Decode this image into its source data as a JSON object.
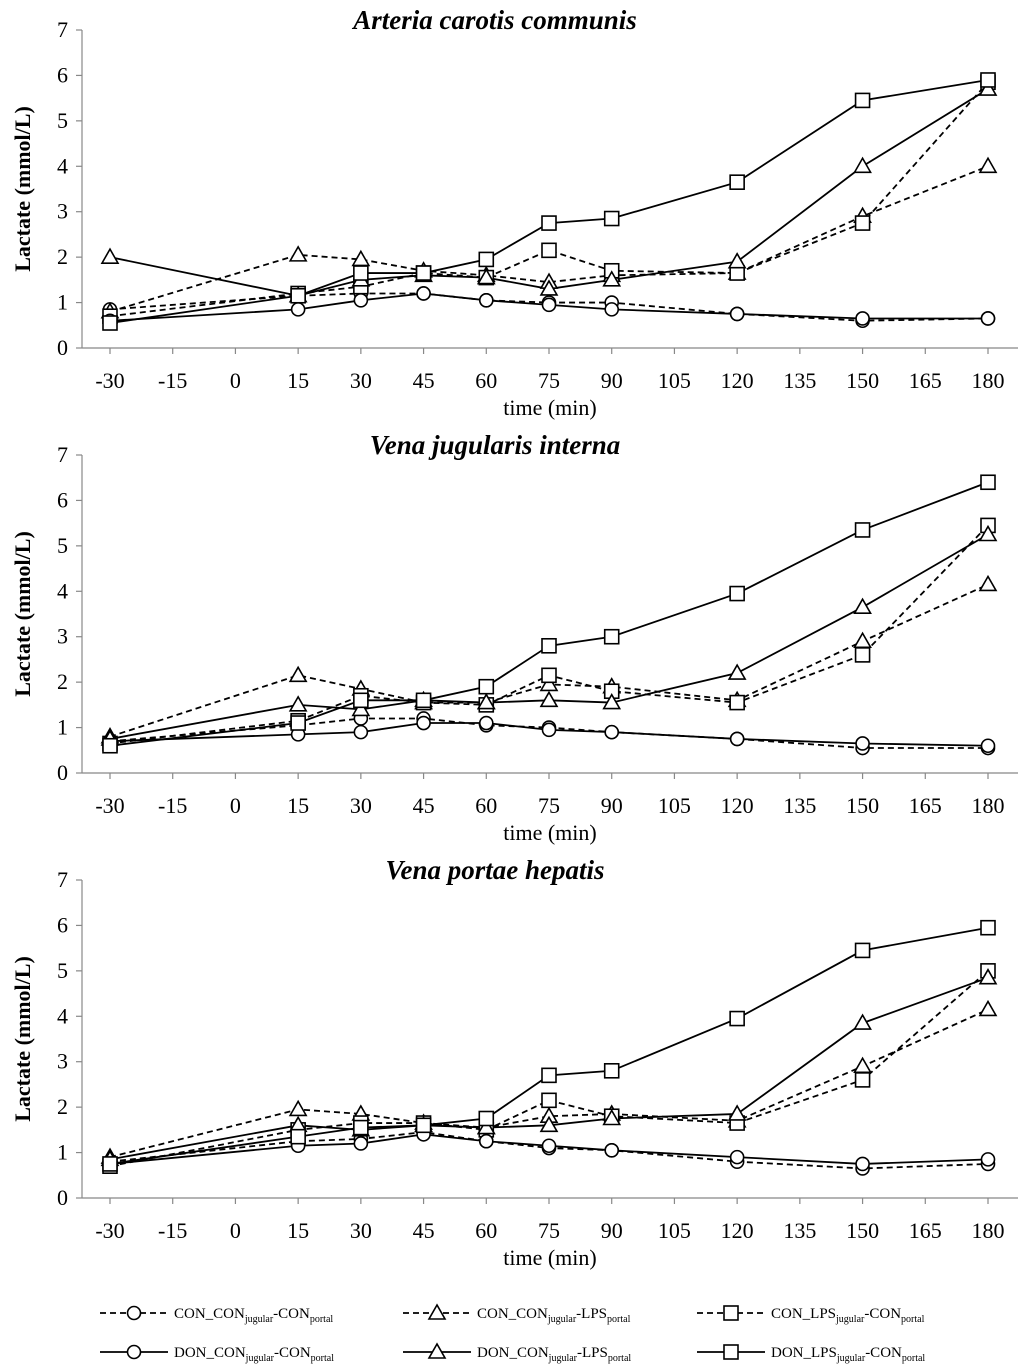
{
  "chart_data": [
    {
      "type": "line",
      "title": "Arteria carotis communis",
      "xlabel": "time (min)",
      "ylabel": "Lactate (mmol/L)",
      "xlim": [
        -30,
        180
      ],
      "ylim": [
        0,
        7
      ],
      "xticks": [
        -30,
        -15,
        0,
        15,
        30,
        45,
        60,
        75,
        90,
        105,
        120,
        135,
        150,
        165,
        180
      ],
      "yticks": [
        0,
        1,
        2,
        3,
        4,
        5,
        6,
        7
      ],
      "x": [
        -30,
        15,
        30,
        45,
        60,
        75,
        90,
        120,
        150,
        180
      ],
      "series": [
        {
          "name": "CON_CON-CON",
          "values": [
            0.85,
            1.15,
            1.2,
            1.2,
            1.05,
            1.0,
            1.0,
            0.75,
            0.6,
            0.65
          ]
        },
        {
          "name": "CON_CON-LPS",
          "values": [
            0.8,
            2.05,
            1.95,
            1.7,
            1.6,
            1.45,
            1.6,
            1.65,
            2.9,
            4.0
          ]
        },
        {
          "name": "CON_LPS-CON",
          "values": [
            0.7,
            1.2,
            1.35,
            1.65,
            1.55,
            2.15,
            1.7,
            1.65,
            2.75,
            5.85
          ]
        },
        {
          "name": "DON_CON-CON",
          "values": [
            0.6,
            0.85,
            1.05,
            1.2,
            1.05,
            0.95,
            0.85,
            0.75,
            0.65,
            0.65
          ]
        },
        {
          "name": "DON_CON-LPS",
          "values": [
            2.0,
            1.15,
            1.5,
            1.6,
            1.55,
            1.3,
            1.5,
            1.9,
            4.0,
            5.7
          ]
        },
        {
          "name": "DON_LPS-CON",
          "values": [
            0.55,
            1.15,
            1.65,
            1.65,
            1.95,
            2.75,
            2.85,
            3.65,
            5.45,
            5.9
          ]
        }
      ]
    },
    {
      "type": "line",
      "title": "Vena jugularis interna",
      "xlabel": "time (min)",
      "ylabel": "Lactate (mmol/L)",
      "xlim": [
        -30,
        180
      ],
      "ylim": [
        0,
        7
      ],
      "xticks": [
        -30,
        -15,
        0,
        15,
        30,
        45,
        60,
        75,
        90,
        105,
        120,
        135,
        150,
        165,
        180
      ],
      "yticks": [
        0,
        1,
        2,
        3,
        4,
        5,
        6,
        7
      ],
      "x": [
        -30,
        15,
        30,
        45,
        60,
        75,
        90,
        120,
        150,
        180
      ],
      "series": [
        {
          "name": "CON_CON-CON",
          "values": [
            0.7,
            1.05,
            1.2,
            1.2,
            1.05,
            1.0,
            0.9,
            0.75,
            0.55,
            0.55
          ]
        },
        {
          "name": "CON_CON-LPS",
          "values": [
            0.8,
            2.15,
            1.85,
            1.55,
            1.55,
            1.95,
            1.9,
            1.6,
            2.9,
            4.15
          ]
        },
        {
          "name": "CON_LPS-CON",
          "values": [
            0.65,
            1.15,
            1.7,
            1.55,
            1.5,
            2.15,
            1.8,
            1.55,
            2.6,
            5.45
          ]
        },
        {
          "name": "DON_CON-CON",
          "values": [
            0.7,
            0.85,
            0.9,
            1.1,
            1.1,
            0.95,
            0.9,
            0.75,
            0.65,
            0.6
          ]
        },
        {
          "name": "DON_CON-LPS",
          "values": [
            0.75,
            1.5,
            1.4,
            1.6,
            1.55,
            1.6,
            1.55,
            2.2,
            3.65,
            5.25
          ]
        },
        {
          "name": "DON_LPS-CON",
          "values": [
            0.6,
            1.1,
            1.6,
            1.6,
            1.9,
            2.8,
            3.0,
            3.95,
            5.35,
            6.4
          ]
        }
      ]
    },
    {
      "type": "line",
      "title": "Vena portae hepatis",
      "xlabel": "time (min)",
      "ylabel": "Lactate (mmol/L)",
      "xlim": [
        -30,
        180
      ],
      "ylim": [
        0,
        7
      ],
      "xticks": [
        -30,
        -15,
        0,
        15,
        30,
        45,
        60,
        75,
        90,
        105,
        120,
        135,
        150,
        165,
        180
      ],
      "yticks": [
        0,
        1,
        2,
        3,
        4,
        5,
        6,
        7
      ],
      "x": [
        -30,
        15,
        30,
        45,
        60,
        75,
        90,
        120,
        150,
        180
      ],
      "series": [
        {
          "name": "CON_CON-CON",
          "values": [
            0.8,
            1.25,
            1.3,
            1.45,
            1.25,
            1.1,
            1.05,
            0.8,
            0.65,
            0.75
          ]
        },
        {
          "name": "CON_CON-LPS",
          "values": [
            0.9,
            1.95,
            1.85,
            1.65,
            1.55,
            1.8,
            1.85,
            1.7,
            2.9,
            4.15
          ]
        },
        {
          "name": "CON_LPS-CON",
          "values": [
            0.7,
            1.5,
            1.65,
            1.65,
            1.5,
            2.15,
            1.8,
            1.65,
            2.6,
            5.0
          ]
        },
        {
          "name": "DON_CON-CON",
          "values": [
            0.75,
            1.15,
            1.2,
            1.4,
            1.25,
            1.15,
            1.05,
            0.9,
            0.75,
            0.85
          ]
        },
        {
          "name": "DON_CON-LPS",
          "values": [
            0.85,
            1.6,
            1.5,
            1.6,
            1.55,
            1.6,
            1.75,
            1.85,
            3.85,
            4.85
          ]
        },
        {
          "name": "DON_LPS-CON",
          "values": [
            0.75,
            1.35,
            1.55,
            1.6,
            1.75,
            2.7,
            2.8,
            3.95,
            5.45,
            5.95
          ]
        }
      ]
    }
  ],
  "legend": [
    {
      "style": "dashed",
      "marker": "circle",
      "prefix": "CON_CON",
      "sub1": "jugular",
      "mid": "-CON",
      "sub2": "portal"
    },
    {
      "style": "dashed",
      "marker": "triangle",
      "prefix": "CON_CON",
      "sub1": "jugular",
      "mid": "-LPS",
      "sub2": "portal"
    },
    {
      "style": "dashed",
      "marker": "square",
      "prefix": "CON_LPS",
      "sub1": "jugular",
      "mid": "-CON",
      "sub2": "portal"
    },
    {
      "style": "solid",
      "marker": "circle",
      "prefix": "DON_CON",
      "sub1": "jugular",
      "mid": "-CON",
      "sub2": "portal"
    },
    {
      "style": "solid",
      "marker": "triangle",
      "prefix": "DON_CON",
      "sub1": "jugular",
      "mid": "-LPS",
      "sub2": "portal"
    },
    {
      "style": "solid",
      "marker": "square",
      "prefix": "DON_LPS",
      "sub1": "jugular",
      "mid": "-CON",
      "sub2": "portal"
    }
  ],
  "series_styles": [
    {
      "dash": "dashed",
      "marker": "circle"
    },
    {
      "dash": "dashed",
      "marker": "triangle"
    },
    {
      "dash": "dashed",
      "marker": "square"
    },
    {
      "dash": "solid",
      "marker": "circle"
    },
    {
      "dash": "solid",
      "marker": "triangle"
    },
    {
      "dash": "solid",
      "marker": "square"
    }
  ],
  "colors": {
    "line": "#000000",
    "marker_fill": "#ffffff",
    "axis": "#888888"
  }
}
